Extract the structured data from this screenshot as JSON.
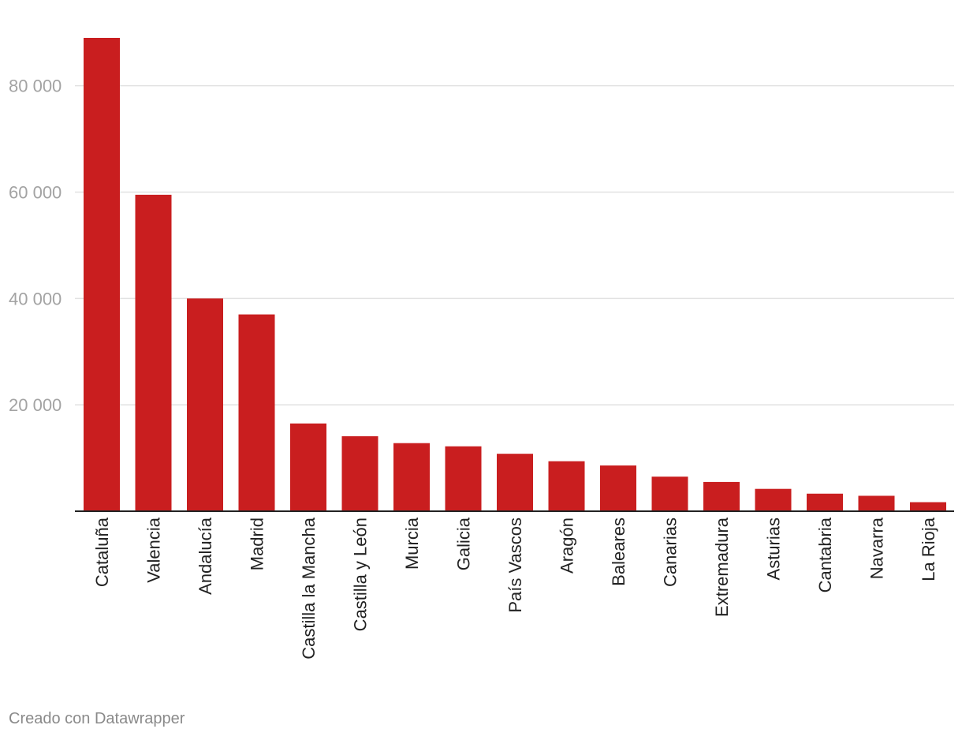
{
  "chart_data": {
    "type": "bar",
    "categories": [
      "Cataluña",
      "Valencia",
      "Andalucía",
      "Madrid",
      "Castilla la Mancha",
      "Castilla y León",
      "Murcia",
      "Galicia",
      "País Vascos",
      "Aragón",
      "Baleares",
      "Canarias",
      "Extremadura",
      "Asturias",
      "Cantabria",
      "Navarra",
      "La Rioja"
    ],
    "values": [
      89000,
      59500,
      40000,
      37000,
      16500,
      14100,
      12800,
      12200,
      10800,
      9400,
      8600,
      6500,
      5500,
      4200,
      3300,
      2900,
      1700
    ],
    "yticks": [
      20000,
      40000,
      60000,
      80000
    ],
    "ytick_labels": [
      "20 000",
      "40 000",
      "60 000",
      "80 000"
    ],
    "ylim": [
      0,
      89000
    ],
    "grid": true,
    "bar_color": "#c91e1f",
    "title": "",
    "xlabel": "",
    "ylabel": ""
  },
  "footer": {
    "credit": "Creado con Datawrapper"
  }
}
